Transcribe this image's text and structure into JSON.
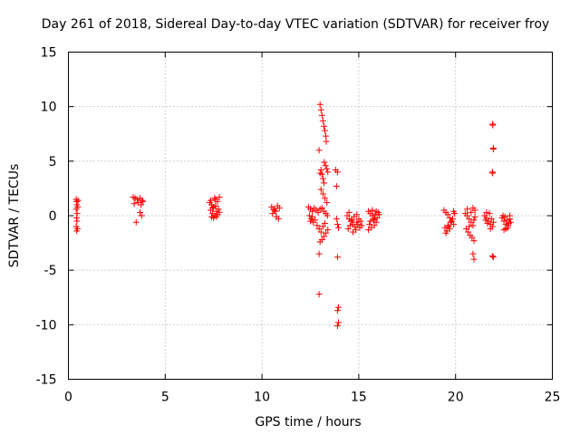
{
  "chart_data": {
    "type": "scatter",
    "title": "Day 261 of 2018, Sidereal Day-to-day VTEC variation (SDTVAR) for receiver froy",
    "xlabel": "GPS time / hours",
    "ylabel": "SDTVAR / TECUs",
    "xlim": [
      0,
      25
    ],
    "ylim": [
      -15,
      15
    ],
    "xticks": [
      "0",
      "5",
      "10",
      "15",
      "20",
      "25"
    ],
    "yticks": [
      "-15",
      "-10",
      "-5",
      "0",
      "5",
      "10",
      "15"
    ],
    "grid": true,
    "marker": "+",
    "color": "#ff0000",
    "series": [
      {
        "name": "SDTVAR",
        "points": [
          [
            0.4,
            1.5
          ],
          [
            0.42,
            1.3
          ],
          [
            0.44,
            1.0
          ],
          [
            0.4,
            0.6
          ],
          [
            0.45,
            0.2
          ],
          [
            0.42,
            -0.2
          ],
          [
            0.44,
            -0.5
          ],
          [
            0.4,
            -1.0
          ],
          [
            0.43,
            -1.4
          ],
          [
            0.5,
            1.4
          ],
          [
            0.48,
            0.8
          ],
          [
            0.47,
            -1.2
          ],
          [
            3.35,
            1.7
          ],
          [
            3.45,
            1.6
          ],
          [
            3.55,
            1.5
          ],
          [
            3.7,
            1.6
          ],
          [
            3.8,
            1.4
          ],
          [
            3.6,
            1.2
          ],
          [
            3.75,
            1.0
          ],
          [
            3.85,
            1.3
          ],
          [
            3.5,
            -0.6
          ],
          [
            3.7,
            0.3
          ],
          [
            3.78,
            0.0
          ],
          [
            3.4,
            1.1
          ],
          [
            7.3,
            1.2
          ],
          [
            7.4,
            1.0
          ],
          [
            7.5,
            0.8
          ],
          [
            7.6,
            1.5
          ],
          [
            7.7,
            1.3
          ],
          [
            7.35,
            0.5
          ],
          [
            7.45,
            0.2
          ],
          [
            7.55,
            0.0
          ],
          [
            7.65,
            0.4
          ],
          [
            7.75,
            0.6
          ],
          [
            7.4,
            -0.1
          ],
          [
            7.5,
            -0.2
          ],
          [
            7.6,
            0.9
          ],
          [
            7.7,
            0.1
          ],
          [
            7.8,
            0.3
          ],
          [
            7.35,
            1.4
          ],
          [
            7.55,
            1.6
          ],
          [
            7.8,
            1.7
          ],
          [
            7.45,
            0.7
          ],
          [
            7.65,
            -0.1
          ],
          [
            10.5,
            0.8
          ],
          [
            10.6,
            0.6
          ],
          [
            10.7,
            0.4
          ],
          [
            10.8,
            0.9
          ],
          [
            10.55,
            0.2
          ],
          [
            10.65,
            0.5
          ],
          [
            10.75,
            -0.1
          ],
          [
            10.85,
            -0.3
          ],
          [
            10.9,
            0.7
          ],
          [
            12.4,
            0.8
          ],
          [
            12.5,
            0.6
          ],
          [
            12.6,
            0.4
          ],
          [
            12.7,
            0.7
          ],
          [
            12.8,
            0.5
          ],
          [
            12.9,
            0.3
          ],
          [
            13.0,
            0.6
          ],
          [
            12.45,
            0.0
          ],
          [
            12.55,
            -0.3
          ],
          [
            12.65,
            -0.6
          ],
          [
            12.75,
            -0.4
          ],
          [
            12.85,
            -0.9
          ],
          [
            12.95,
            -1.2
          ],
          [
            12.5,
            -0.5
          ],
          [
            12.6,
            -0.1
          ],
          [
            13.0,
            10.2
          ],
          [
            13.05,
            9.7
          ],
          [
            13.1,
            9.2
          ],
          [
            13.15,
            8.7
          ],
          [
            13.2,
            8.2
          ],
          [
            13.25,
            7.8
          ],
          [
            13.3,
            7.3
          ],
          [
            13.32,
            6.8
          ],
          [
            12.95,
            6.0
          ],
          [
            13.05,
            4.2
          ],
          [
            13.1,
            3.8
          ],
          [
            13.15,
            3.4
          ],
          [
            13.2,
            3.0
          ],
          [
            13.0,
            3.9
          ],
          [
            13.22,
            4.9
          ],
          [
            13.28,
            4.6
          ],
          [
            13.35,
            4.3
          ],
          [
            13.4,
            4.0
          ],
          [
            13.05,
            2.4
          ],
          [
            13.15,
            2.0
          ],
          [
            13.25,
            1.6
          ],
          [
            13.35,
            1.2
          ],
          [
            13.1,
            0.7
          ],
          [
            13.2,
            0.4
          ],
          [
            13.3,
            0.2
          ],
          [
            13.38,
            0.0
          ],
          [
            13.0,
            -2.4
          ],
          [
            13.1,
            -2.2
          ],
          [
            13.2,
            -1.9
          ],
          [
            13.3,
            -1.6
          ],
          [
            13.4,
            -1.3
          ],
          [
            13.05,
            -1.5
          ],
          [
            13.15,
            -1.0
          ],
          [
            13.25,
            -0.7
          ],
          [
            12.95,
            -3.5
          ],
          [
            12.95,
            -7.2
          ],
          [
            13.8,
            4.2
          ],
          [
            13.9,
            4.0
          ],
          [
            13.85,
            2.7
          ],
          [
            13.85,
            -0.3
          ],
          [
            13.9,
            -0.8
          ],
          [
            13.95,
            -1.1
          ],
          [
            13.9,
            -3.8
          ],
          [
            13.95,
            -8.4
          ],
          [
            13.9,
            -8.7
          ],
          [
            13.95,
            -9.8
          ],
          [
            13.9,
            -10.1
          ],
          [
            14.4,
            0.0
          ],
          [
            14.5,
            -0.3
          ],
          [
            14.6,
            -0.5
          ],
          [
            14.7,
            -0.8
          ],
          [
            14.8,
            -1.0
          ],
          [
            14.9,
            -0.6
          ],
          [
            15.0,
            -0.3
          ],
          [
            14.45,
            -1.2
          ],
          [
            14.55,
            -0.9
          ],
          [
            14.65,
            -0.4
          ],
          [
            14.75,
            -0.1
          ],
          [
            14.85,
            -1.3
          ],
          [
            14.95,
            -0.8
          ],
          [
            15.05,
            -1.1
          ],
          [
            14.5,
            0.3
          ],
          [
            14.7,
            -1.5
          ],
          [
            14.9,
            0.1
          ],
          [
            15.1,
            -0.5
          ],
          [
            15.15,
            -0.9
          ],
          [
            15.5,
            0.4
          ],
          [
            15.6,
            0.2
          ],
          [
            15.7,
            0.0
          ],
          [
            15.8,
            -0.3
          ],
          [
            15.9,
            -0.6
          ],
          [
            16.0,
            0.3
          ],
          [
            15.55,
            -0.8
          ],
          [
            15.65,
            -1.1
          ],
          [
            15.75,
            -0.4
          ],
          [
            15.85,
            0.1
          ],
          [
            15.95,
            -0.2
          ],
          [
            15.5,
            -1.3
          ],
          [
            15.7,
            0.5
          ],
          [
            15.9,
            0.4
          ],
          [
            16.05,
            0.1
          ],
          [
            15.6,
            -0.5
          ],
          [
            15.8,
            -0.9
          ],
          [
            19.4,
            0.5
          ],
          [
            19.5,
            0.3
          ],
          [
            19.6,
            0.1
          ],
          [
            19.7,
            -0.2
          ],
          [
            19.8,
            -0.5
          ],
          [
            19.9,
            -0.8
          ],
          [
            19.45,
            -1.1
          ],
          [
            19.55,
            -1.4
          ],
          [
            19.65,
            -1.0
          ],
          [
            19.75,
            -0.6
          ],
          [
            19.85,
            -0.3
          ],
          [
            19.95,
            0.2
          ],
          [
            19.5,
            -1.6
          ],
          [
            19.7,
            -1.2
          ],
          [
            19.9,
            0.4
          ],
          [
            19.6,
            -0.9
          ],
          [
            20.5,
            0.2
          ],
          [
            20.6,
            0.0
          ],
          [
            20.7,
            -0.3
          ],
          [
            20.8,
            -0.6
          ],
          [
            20.9,
            -0.9
          ],
          [
            21.0,
            0.5
          ],
          [
            20.55,
            -1.2
          ],
          [
            20.65,
            -1.5
          ],
          [
            20.75,
            -1.8
          ],
          [
            20.85,
            -2.0
          ],
          [
            20.95,
            -0.4
          ],
          [
            20.6,
            0.6
          ],
          [
            20.8,
            0.3
          ],
          [
            21.0,
            -0.1
          ],
          [
            20.7,
            -1.0
          ],
          [
            20.9,
            0.7
          ],
          [
            20.95,
            -2.3
          ],
          [
            20.9,
            -3.5
          ],
          [
            20.95,
            -4.0
          ],
          [
            21.5,
            0.0
          ],
          [
            21.6,
            -0.2
          ],
          [
            21.7,
            -0.5
          ],
          [
            21.8,
            -0.8
          ],
          [
            21.9,
            -1.0
          ],
          [
            21.55,
            -0.4
          ],
          [
            21.65,
            -0.7
          ],
          [
            21.75,
            0.2
          ],
          [
            21.85,
            -0.3
          ],
          [
            21.95,
            -0.6
          ],
          [
            21.6,
            0.3
          ],
          [
            21.8,
            -1.2
          ],
          [
            21.92,
            8.4
          ],
          [
            21.92,
            8.3
          ],
          [
            21.95,
            6.2
          ],
          [
            21.95,
            6.1
          ],
          [
            21.9,
            4.0
          ],
          [
            21.92,
            3.9
          ],
          [
            21.9,
            -3.7
          ],
          [
            21.95,
            -3.8
          ],
          [
            22.4,
            -0.2
          ],
          [
            22.5,
            -0.5
          ],
          [
            22.6,
            -0.8
          ],
          [
            22.7,
            -1.1
          ],
          [
            22.8,
            -0.3
          ],
          [
            22.45,
            0.0
          ],
          [
            22.55,
            -0.1
          ],
          [
            22.65,
            -0.4
          ],
          [
            22.75,
            -0.7
          ],
          [
            22.85,
            -0.6
          ],
          [
            22.5,
            -1.3
          ],
          [
            22.7,
            -0.9
          ],
          [
            22.8,
            0.0
          ],
          [
            22.6,
            -1.2
          ]
        ]
      }
    ]
  }
}
